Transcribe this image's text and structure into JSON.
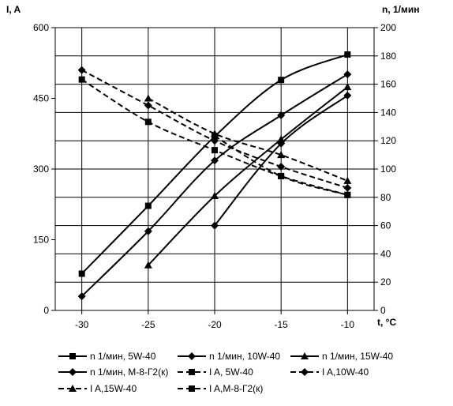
{
  "chart_data": {
    "type": "line",
    "y_left_label": "I, A",
    "y_right_label": "n, 1/мин",
    "x_label": "t, °C",
    "x_ticks": [
      -30,
      -25,
      -20,
      -15,
      -10
    ],
    "y_left_ticks": [
      0,
      150,
      300,
      450,
      600
    ],
    "y_right_ticks": [
      0,
      20,
      40,
      60,
      80,
      100,
      120,
      140,
      160,
      180,
      200
    ],
    "xlim": [
      -32,
      -8
    ],
    "y_left_lim": [
      0,
      600
    ],
    "y_right_lim": [
      0,
      200
    ],
    "grid": true,
    "legend_position": "bottom",
    "series": [
      {
        "name": "n 1/мин, 5W-40",
        "axis": "right",
        "style": "solid",
        "marker": "square",
        "x": [
          -30,
          -25,
          -20,
          -15,
          -10
        ],
        "y": [
          26,
          74,
          123,
          163,
          181
        ]
      },
      {
        "name": "n 1/мин, 10W-40",
        "axis": "right",
        "style": "solid",
        "marker": "diamond",
        "x": [
          -30,
          -25,
          -20,
          -15,
          -10
        ],
        "y": [
          10,
          56,
          106,
          138,
          167
        ]
      },
      {
        "name": "n 1/мин, 15W-40",
        "axis": "right",
        "style": "solid",
        "marker": "triangle",
        "x": [
          -25,
          -20,
          -15,
          -10
        ],
        "y": [
          32,
          81,
          121,
          158
        ]
      },
      {
        "name": "n 1/мин, М-8-Г2(к)",
        "axis": "right",
        "style": "solid",
        "marker": "diamond",
        "x": [
          -20,
          -15,
          -10
        ],
        "y": [
          60,
          118,
          152
        ]
      },
      {
        "name": "I A,  5W-40",
        "axis": "left",
        "style": "dashed",
        "marker": "square",
        "x": [
          -30,
          -25,
          -20,
          -15,
          -10
        ],
        "y": [
          490,
          400,
          340,
          285,
          245
        ]
      },
      {
        "name": "I A,10W-40",
        "axis": "left",
        "style": "dashed",
        "marker": "diamond",
        "x": [
          -30,
          -25,
          -20,
          -15,
          -10
        ],
        "y": [
          510,
          435,
          360,
          305,
          260
        ]
      },
      {
        "name": "I A,15W-40",
        "axis": "left",
        "style": "dashed",
        "marker": "triangle",
        "x": [
          -25,
          -20,
          -15,
          -10
        ],
        "y": [
          450,
          375,
          330,
          275
        ]
      },
      {
        "name": "I A,М-8-Г2(к)",
        "axis": "left",
        "style": "dashed",
        "marker": "square",
        "x": [
          -20,
          -15,
          -10
        ],
        "y": [
          370,
          285,
          245
        ]
      }
    ]
  }
}
